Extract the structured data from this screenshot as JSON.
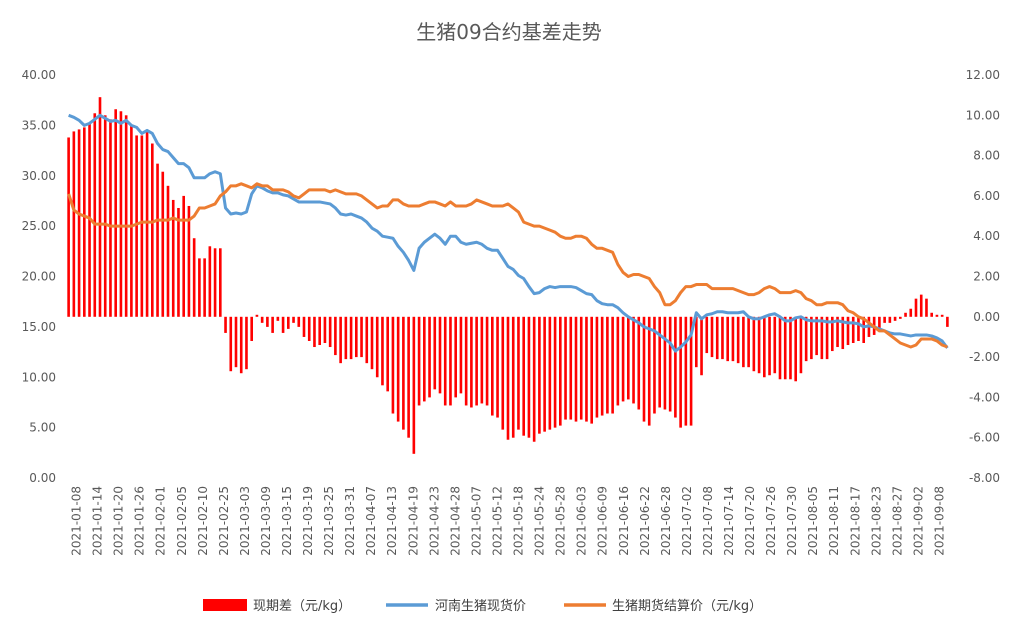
{
  "chart_data": {
    "type": "bar+line",
    "title": "生猪09合约基差走势",
    "y_left": {
      "ylim": [
        0,
        40
      ],
      "ticks": [
        "0.00",
        "5.00",
        "10.00",
        "15.00",
        "20.00",
        "25.00",
        "30.00",
        "35.00",
        "40.00"
      ]
    },
    "y_right": {
      "ylim": [
        -8,
        12
      ],
      "ticks": [
        "-8.00",
        "-6.00",
        "-4.00",
        "-2.00",
        "0.00",
        "2.00",
        "4.00",
        "6.00",
        "8.00",
        "10.00",
        "12.00"
      ]
    },
    "x_tick_labels": [
      "2021-01-08",
      "2021-01-14",
      "2021-01-20",
      "2021-01-26",
      "2021-02-01",
      "2021-02-05",
      "2021-02-10",
      "2021-02-25",
      "2021-03-03",
      "2021-03-09",
      "2021-03-15",
      "2021-03-19",
      "2021-03-25",
      "2021-03-31",
      "2021-04-07",
      "2021-04-13",
      "2021-04-19",
      "2021-04-23",
      "2021-04-28",
      "2021-05-07",
      "2021-05-12",
      "2021-05-18",
      "2021-05-24",
      "2021-05-28",
      "2021-06-03",
      "2021-06-09",
      "2021-06-16",
      "2021-06-22",
      "2021-06-28",
      "2021-07-02",
      "2021-07-08",
      "2021-07-14",
      "2021-07-20",
      "2021-07-26",
      "2021-07-30",
      "2021-08-05",
      "2021-08-11",
      "2021-08-17",
      "2021-08-23",
      "2021-08-27",
      "2021-09-02",
      "2021-09-08"
    ],
    "series": [
      {
        "name": "现期差（元/kg）",
        "type": "bar",
        "axis": "right",
        "color": "#ff0000"
      },
      {
        "name": "河南生猪现货价",
        "type": "line",
        "axis": "left",
        "color": "#5b9bd5"
      },
      {
        "name": "生猪期货结算价（元/kg）",
        "type": "line",
        "axis": "right",
        "color": "#ed7d31"
      }
    ],
    "points": [
      {
        "b": 8.9,
        "s": 36.0,
        "f": 6.1
      },
      {
        "b": 9.2,
        "s": 35.8,
        "f": 5.3
      },
      {
        "b": 9.3,
        "s": 35.5,
        "f": 5.1
      },
      {
        "b": 9.4,
        "s": 35.0,
        "f": 5.0
      },
      {
        "b": 9.6,
        "s": 35.2,
        "f": 4.9
      },
      {
        "b": 10.1,
        "s": 35.6,
        "f": 4.6
      },
      {
        "b": 10.9,
        "s": 36.0,
        "f": 4.6
      },
      {
        "b": 10.0,
        "s": 35.7,
        "f": 4.6
      },
      {
        "b": 9.8,
        "s": 35.4,
        "f": 4.5
      },
      {
        "b": 10.3,
        "s": 35.5,
        "f": 4.5
      },
      {
        "b": 10.2,
        "s": 35.2,
        "f": 4.5
      },
      {
        "b": 10.0,
        "s": 35.5,
        "f": 4.5
      },
      {
        "b": 9.5,
        "s": 35.0,
        "f": 4.5
      },
      {
        "b": 9.0,
        "s": 34.8,
        "f": 4.6
      },
      {
        "b": 9.0,
        "s": 34.2,
        "f": 4.7
      },
      {
        "b": 9.2,
        "s": 34.5,
        "f": 4.7
      },
      {
        "b": 8.6,
        "s": 34.2,
        "f": 4.7
      },
      {
        "b": 7.6,
        "s": 33.2,
        "f": 4.8
      },
      {
        "b": 7.2,
        "s": 32.6,
        "f": 4.8
      },
      {
        "b": 6.5,
        "s": 32.4,
        "f": 4.8
      },
      {
        "b": 5.8,
        "s": 31.8,
        "f": 4.9
      },
      {
        "b": 5.4,
        "s": 31.2,
        "f": 4.8
      },
      {
        "b": 6.0,
        "s": 31.2,
        "f": 4.8
      },
      {
        "b": 5.5,
        "s": 30.8,
        "f": 4.8
      },
      {
        "b": 3.9,
        "s": 29.8,
        "f": 5.0
      },
      {
        "b": 2.9,
        "s": 29.8,
        "f": 5.4
      },
      {
        "b": 2.9,
        "s": 29.8,
        "f": 5.4
      },
      {
        "b": 3.5,
        "s": 30.2,
        "f": 5.5
      },
      {
        "b": 3.4,
        "s": 30.4,
        "f": 5.6
      },
      {
        "b": 3.4,
        "s": 30.2,
        "f": 6.0
      },
      {
        "b": -0.8,
        "s": 26.8,
        "f": 6.2
      },
      {
        "b": -2.7,
        "s": 26.2,
        "f": 6.5
      },
      {
        "b": -2.5,
        "s": 26.3,
        "f": 6.5
      },
      {
        "b": -2.8,
        "s": 26.2,
        "f": 6.6
      },
      {
        "b": -2.6,
        "s": 26.4,
        "f": 6.5
      },
      {
        "b": -1.2,
        "s": 28.2,
        "f": 6.4
      },
      {
        "b": 0.1,
        "s": 29.0,
        "f": 6.6
      },
      {
        "b": -0.3,
        "s": 28.8,
        "f": 6.5
      },
      {
        "b": -0.5,
        "s": 28.5,
        "f": 6.5
      },
      {
        "b": -0.8,
        "s": 28.3,
        "f": 6.3
      },
      {
        "b": -0.2,
        "s": 28.3,
        "f": 6.3
      },
      {
        "b": -0.8,
        "s": 28.1,
        "f": 6.3
      },
      {
        "b": -0.6,
        "s": 28.0,
        "f": 6.2
      },
      {
        "b": -0.3,
        "s": 27.7,
        "f": 6.0
      },
      {
        "b": -0.5,
        "s": 27.4,
        "f": 5.9
      },
      {
        "b": -1.0,
        "s": 27.4,
        "f": 6.1
      },
      {
        "b": -1.2,
        "s": 27.4,
        "f": 6.3
      },
      {
        "b": -1.5,
        "s": 27.4,
        "f": 6.3
      },
      {
        "b": -1.4,
        "s": 27.4,
        "f": 6.3
      },
      {
        "b": -1.3,
        "s": 27.3,
        "f": 6.3
      },
      {
        "b": -1.5,
        "s": 27.2,
        "f": 6.2
      },
      {
        "b": -1.9,
        "s": 26.8,
        "f": 6.3
      },
      {
        "b": -2.3,
        "s": 26.2,
        "f": 6.2
      },
      {
        "b": -2.1,
        "s": 26.1,
        "f": 6.1
      },
      {
        "b": -2.1,
        "s": 26.2,
        "f": 6.1
      },
      {
        "b": -2.0,
        "s": 26.0,
        "f": 6.1
      },
      {
        "b": -2.0,
        "s": 25.8,
        "f": 6.0
      },
      {
        "b": -2.3,
        "s": 25.4,
        "f": 5.8
      },
      {
        "b": -2.6,
        "s": 24.8,
        "f": 5.6
      },
      {
        "b": -3.0,
        "s": 24.5,
        "f": 5.4
      },
      {
        "b": -3.4,
        "s": 24.0,
        "f": 5.5
      },
      {
        "b": -3.7,
        "s": 23.9,
        "f": 5.5
      },
      {
        "b": -4.8,
        "s": 23.8,
        "f": 5.8
      },
      {
        "b": -5.2,
        "s": 23.0,
        "f": 5.8
      },
      {
        "b": -5.6,
        "s": 22.4,
        "f": 5.6
      },
      {
        "b": -6.0,
        "s": 21.6,
        "f": 5.5
      },
      {
        "b": -6.8,
        "s": 20.6,
        "f": 5.5
      },
      {
        "b": -4.4,
        "s": 22.8,
        "f": 5.5
      },
      {
        "b": -4.2,
        "s": 23.4,
        "f": 5.6
      },
      {
        "b": -4.0,
        "s": 23.8,
        "f": 5.7
      },
      {
        "b": -3.6,
        "s": 24.2,
        "f": 5.7
      },
      {
        "b": -3.8,
        "s": 23.8,
        "f": 5.6
      },
      {
        "b": -4.4,
        "s": 23.2,
        "f": 5.5
      },
      {
        "b": -4.4,
        "s": 24.0,
        "f": 5.7
      },
      {
        "b": -4.0,
        "s": 24.0,
        "f": 5.5
      },
      {
        "b": -3.8,
        "s": 23.4,
        "f": 5.5
      },
      {
        "b": -4.4,
        "s": 23.2,
        "f": 5.5
      },
      {
        "b": -4.5,
        "s": 23.3,
        "f": 5.6
      },
      {
        "b": -4.4,
        "s": 23.4,
        "f": 5.8
      },
      {
        "b": -4.3,
        "s": 23.2,
        "f": 5.7
      },
      {
        "b": -4.4,
        "s": 22.8,
        "f": 5.6
      },
      {
        "b": -4.9,
        "s": 22.6,
        "f": 5.5
      },
      {
        "b": -5.0,
        "s": 22.6,
        "f": 5.5
      },
      {
        "b": -5.6,
        "s": 21.8,
        "f": 5.5
      },
      {
        "b": -6.1,
        "s": 21.0,
        "f": 5.6
      },
      {
        "b": -6.0,
        "s": 20.7,
        "f": 5.4
      },
      {
        "b": -5.6,
        "s": 20.1,
        "f": 5.2
      },
      {
        "b": -5.9,
        "s": 19.8,
        "f": 4.7
      },
      {
        "b": -6.0,
        "s": 19.0,
        "f": 4.6
      },
      {
        "b": -6.2,
        "s": 18.3,
        "f": 4.5
      },
      {
        "b": -5.8,
        "s": 18.4,
        "f": 4.5
      },
      {
        "b": -5.7,
        "s": 18.8,
        "f": 4.4
      },
      {
        "b": -5.6,
        "s": 19.0,
        "f": 4.3
      },
      {
        "b": -5.5,
        "s": 18.9,
        "f": 4.2
      },
      {
        "b": -5.4,
        "s": 19.0,
        "f": 4.0
      },
      {
        "b": -5.1,
        "s": 19.0,
        "f": 3.9
      },
      {
        "b": -5.1,
        "s": 19.0,
        "f": 3.9
      },
      {
        "b": -5.2,
        "s": 18.9,
        "f": 4.0
      },
      {
        "b": -5.1,
        "s": 18.6,
        "f": 4.0
      },
      {
        "b": -5.2,
        "s": 18.3,
        "f": 3.9
      },
      {
        "b": -5.3,
        "s": 18.2,
        "f": 3.6
      },
      {
        "b": -5.0,
        "s": 17.6,
        "f": 3.4
      },
      {
        "b": -4.9,
        "s": 17.3,
        "f": 3.4
      },
      {
        "b": -4.8,
        "s": 17.2,
        "f": 3.3
      },
      {
        "b": -4.8,
        "s": 17.2,
        "f": 3.2
      },
      {
        "b": -4.4,
        "s": 16.9,
        "f": 2.6
      },
      {
        "b": -4.2,
        "s": 16.4,
        "f": 2.2
      },
      {
        "b": -4.1,
        "s": 16.0,
        "f": 2.0
      },
      {
        "b": -4.3,
        "s": 15.7,
        "f": 2.1
      },
      {
        "b": -4.6,
        "s": 15.4,
        "f": 2.1
      },
      {
        "b": -5.2,
        "s": 15.0,
        "f": 2.0
      },
      {
        "b": -5.4,
        "s": 14.8,
        "f": 1.9
      },
      {
        "b": -4.8,
        "s": 14.6,
        "f": 1.5
      },
      {
        "b": -4.5,
        "s": 14.2,
        "f": 1.2
      },
      {
        "b": -4.6,
        "s": 13.8,
        "f": 0.6
      },
      {
        "b": -4.7,
        "s": 13.4,
        "f": 0.6
      },
      {
        "b": -5.0,
        "s": 12.6,
        "f": 0.8
      },
      {
        "b": -5.5,
        "s": 13.0,
        "f": 1.2
      },
      {
        "b": -5.4,
        "s": 13.5,
        "f": 1.5
      },
      {
        "b": -5.4,
        "s": 14.2,
        "f": 1.5
      },
      {
        "b": -2.5,
        "s": 16.4,
        "f": 1.6
      },
      {
        "b": -2.9,
        "s": 15.8,
        "f": 1.6
      },
      {
        "b": -1.8,
        "s": 16.2,
        "f": 1.6
      },
      {
        "b": -2.0,
        "s": 16.3,
        "f": 1.4
      },
      {
        "b": -2.1,
        "s": 16.5,
        "f": 1.4
      },
      {
        "b": -2.1,
        "s": 16.5,
        "f": 1.4
      },
      {
        "b": -2.2,
        "s": 16.4,
        "f": 1.4
      },
      {
        "b": -2.2,
        "s": 16.4,
        "f": 1.4
      },
      {
        "b": -2.3,
        "s": 16.4,
        "f": 1.3
      },
      {
        "b": -2.5,
        "s": 16.5,
        "f": 1.2
      },
      {
        "b": -2.5,
        "s": 16.0,
        "f": 1.1
      },
      {
        "b": -2.7,
        "s": 15.8,
        "f": 1.1
      },
      {
        "b": -2.8,
        "s": 15.8,
        "f": 1.2
      },
      {
        "b": -3.0,
        "s": 16.0,
        "f": 1.4
      },
      {
        "b": -2.9,
        "s": 16.2,
        "f": 1.5
      },
      {
        "b": -2.8,
        "s": 16.3,
        "f": 1.4
      },
      {
        "b": -3.1,
        "s": 16.0,
        "f": 1.2
      },
      {
        "b": -3.1,
        "s": 15.6,
        "f": 1.2
      },
      {
        "b": -3.1,
        "s": 15.6,
        "f": 1.2
      },
      {
        "b": -3.2,
        "s": 15.9,
        "f": 1.3
      },
      {
        "b": -2.8,
        "s": 16.0,
        "f": 1.2
      },
      {
        "b": -2.2,
        "s": 15.7,
        "f": 0.9
      },
      {
        "b": -2.1,
        "s": 15.6,
        "f": 0.8
      },
      {
        "b": -1.9,
        "s": 15.6,
        "f": 0.6
      },
      {
        "b": -2.1,
        "s": 15.6,
        "f": 0.6
      },
      {
        "b": -2.1,
        "s": 15.5,
        "f": 0.7
      },
      {
        "b": -1.7,
        "s": 15.5,
        "f": 0.7
      },
      {
        "b": -1.5,
        "s": 15.6,
        "f": 0.7
      },
      {
        "b": -1.6,
        "s": 15.5,
        "f": 0.6
      },
      {
        "b": -1.4,
        "s": 15.4,
        "f": 0.3
      },
      {
        "b": -1.3,
        "s": 15.4,
        "f": 0.2
      },
      {
        "b": -1.2,
        "s": 15.3,
        "f": 0.0
      },
      {
        "b": -1.3,
        "s": 15.0,
        "f": -0.1
      },
      {
        "b": -1.0,
        "s": 15.1,
        "f": -0.3
      },
      {
        "b": -0.9,
        "s": 15.0,
        "f": -0.5
      },
      {
        "b": -0.6,
        "s": 14.8,
        "f": -0.7
      },
      {
        "b": -0.3,
        "s": 14.6,
        "f": -0.7
      },
      {
        "b": -0.3,
        "s": 14.4,
        "f": -0.9
      },
      {
        "b": -0.2,
        "s": 14.3,
        "f": -1.1
      },
      {
        "b": -0.1,
        "s": 14.3,
        "f": -1.3
      },
      {
        "b": 0.2,
        "s": 14.2,
        "f": -1.4
      },
      {
        "b": 0.4,
        "s": 14.1,
        "f": -1.5
      },
      {
        "b": 0.9,
        "s": 14.2,
        "f": -1.4
      },
      {
        "b": 1.1,
        "s": 14.2,
        "f": -1.1
      },
      {
        "b": 0.9,
        "s": 14.2,
        "f": -1.1
      },
      {
        "b": 0.2,
        "s": 14.1,
        "f": -1.1
      },
      {
        "b": 0.1,
        "s": 13.9,
        "f": -1.2
      },
      {
        "b": 0.1,
        "s": 13.6,
        "f": -1.4
      },
      {
        "b": -0.5,
        "s": 12.9,
        "f": -1.5
      }
    ]
  },
  "legend": {
    "basis": "现期差（元/kg）",
    "spot": "河南生猪现货价",
    "futures": "生猪期货结算价（元/kg）"
  }
}
